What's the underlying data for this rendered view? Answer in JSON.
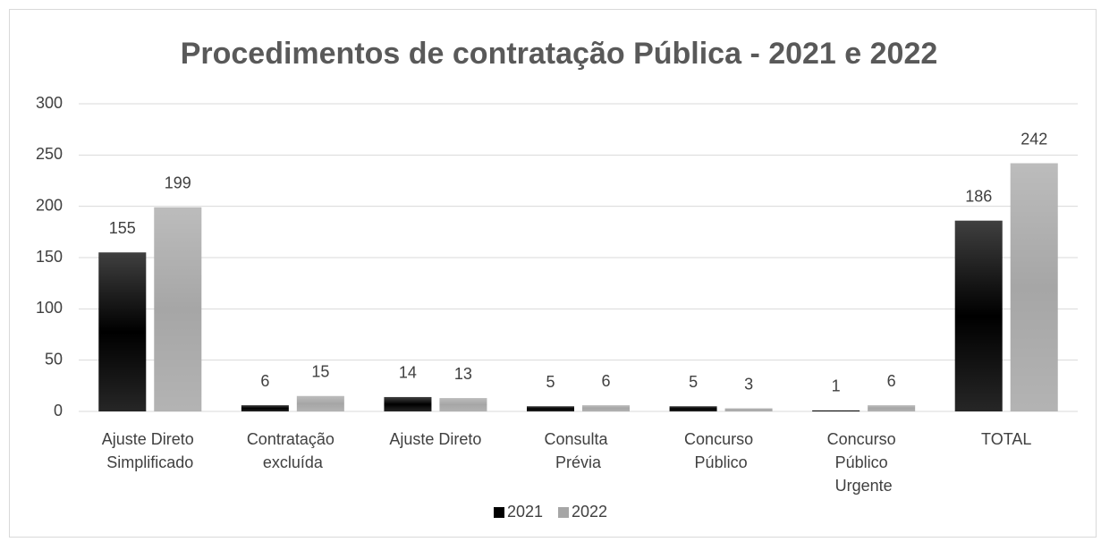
{
  "chart_data": {
    "type": "bar",
    "title": "Procedimentos de contratação Pública - 2021 e 2022",
    "categories": [
      "Ajuste Direto Simplificado",
      "Contratação excluída",
      "Ajuste Direto",
      "Consulta Prévia",
      "Concurso Público",
      "Concurso Público Urgente",
      "TOTAL"
    ],
    "series": [
      {
        "name": "2021",
        "color": "#000000",
        "values": [
          155,
          6,
          14,
          5,
          5,
          1,
          186
        ]
      },
      {
        "name": "2022",
        "color": "#a6a6a6",
        "values": [
          199,
          15,
          13,
          6,
          3,
          6,
          242
        ]
      }
    ],
    "ylim": [
      0,
      300
    ],
    "yticks": [
      0,
      50,
      100,
      150,
      200,
      250,
      300
    ],
    "grid": true,
    "legend": "bottom"
  }
}
